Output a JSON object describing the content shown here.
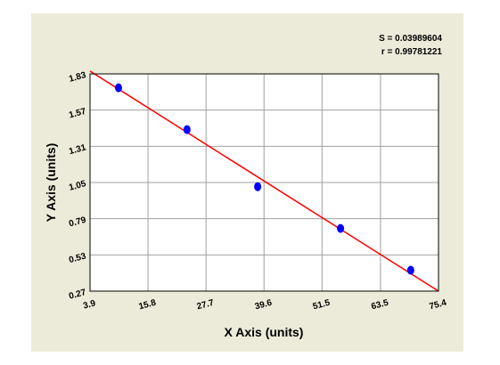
{
  "chart_data": {
    "type": "scatter",
    "x_label": "X Axis (units)",
    "y_label": "Y Axis (units)",
    "annotations": [
      "S = 0.03989604",
      "r = 0.99781221"
    ],
    "x": [
      9.75,
      23.8,
      38.3,
      55.3,
      69.7
    ],
    "values": [
      1.73,
      1.43,
      1.02,
      0.72,
      0.42
    ],
    "color": "#0000ff",
    "fit_line": {
      "x": [
        3.9,
        75.4
      ],
      "y": [
        1.85,
        0.27
      ],
      "color": "#ff0000"
    },
    "xlim": [
      3.9,
      75.4
    ],
    "xticks": [
      3.9,
      15.8,
      27.7,
      39.6,
      51.5,
      63.5,
      75.4
    ],
    "ylim": [
      0.27,
      1.83
    ],
    "yticks": [
      0.27,
      0.53,
      0.79,
      1.05,
      1.31,
      1.57,
      1.83
    ],
    "grid": true
  }
}
